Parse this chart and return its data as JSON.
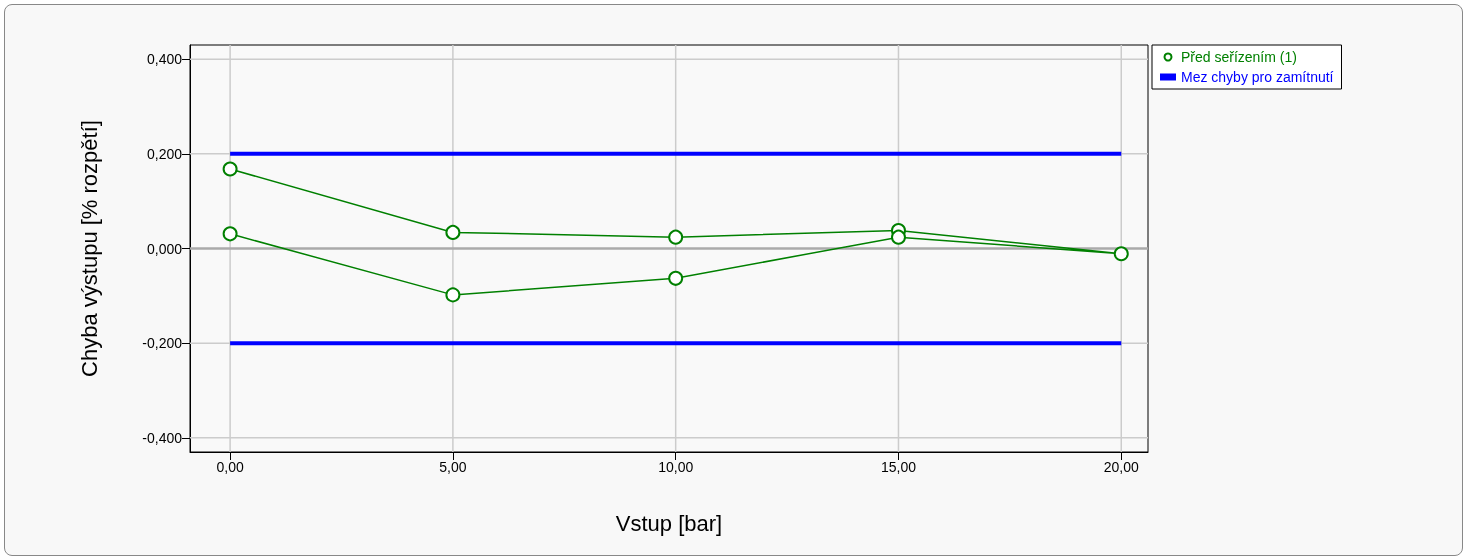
{
  "chart_data": {
    "type": "line",
    "xlabel": "Vstup [bar]",
    "ylabel": "Chyba výstupu [% rozpětí]",
    "xlim": [
      -0.9,
      20.6
    ],
    "xticks": [
      {
        "value": 0,
        "label": "0,00"
      },
      {
        "value": 5,
        "label": "5,00"
      },
      {
        "value": 10,
        "label": "10,00"
      },
      {
        "value": 15,
        "label": "15,00"
      },
      {
        "value": 20,
        "label": "20,00"
      }
    ],
    "ylim": [
      -0.43,
      0.43
    ],
    "yticks": [
      {
        "value": -0.4,
        "label": "-0,400"
      },
      {
        "value": -0.2,
        "label": "-0,200"
      },
      {
        "value": 0,
        "label": "0,000"
      },
      {
        "value": 0.2,
        "label": "0,200"
      },
      {
        "value": 0.4,
        "label": "0,400"
      }
    ],
    "grid": true,
    "legend": "top right",
    "series": [
      {
        "name": "Před seřízením (1)",
        "color": "#008000",
        "marker": "circle",
        "x": [
          0,
          5,
          10,
          15,
          20,
          15,
          10,
          5,
          0
        ],
        "values": [
          0.168,
          0.034,
          0.024,
          0.038,
          -0.011,
          0.024,
          -0.063,
          -0.098,
          0.031
        ]
      },
      {
        "name": "Mez chyby pro zamítnutí",
        "color": "#0000ff",
        "marker": "none",
        "x": [
          0,
          20
        ],
        "values": [
          0.2,
          0.2
        ]
      },
      {
        "color": "#0000ff",
        "marker": "none",
        "x": [
          0,
          20
        ],
        "values": [
          -0.2,
          -0.2
        ]
      }
    ]
  }
}
